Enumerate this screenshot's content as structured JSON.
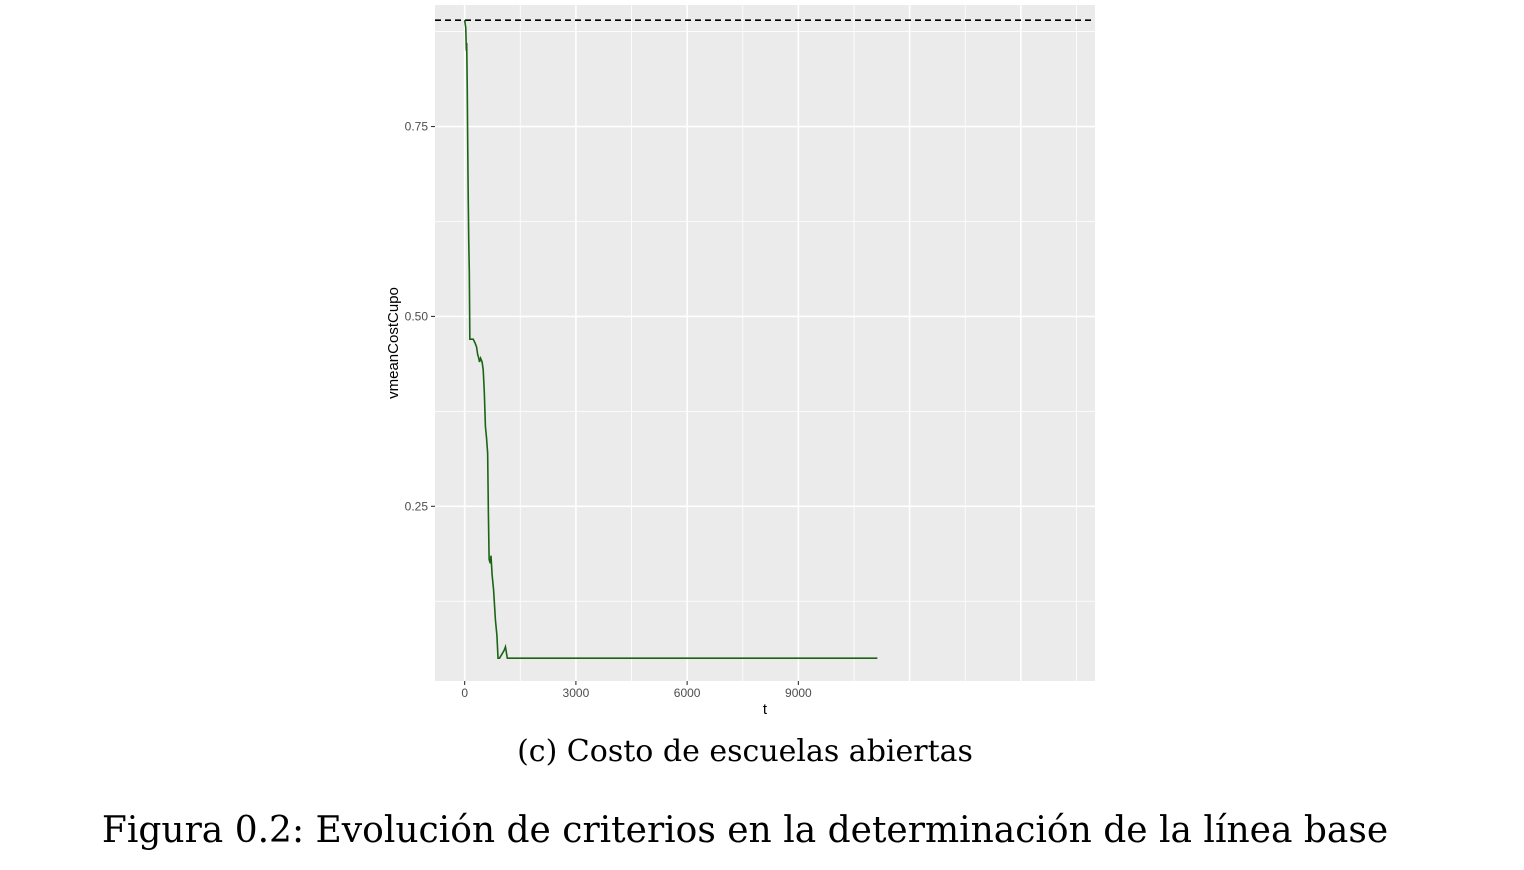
{
  "chart_data": {
    "type": "line",
    "xlabel": "t",
    "ylabel": "vmeanCostCupo",
    "xlim": [
      -800,
      17000
    ],
    "ylim": [
      0.02,
      0.91
    ],
    "x_ticks": [
      0,
      3000,
      6000,
      9000
    ],
    "x_tick_labels": [
      "0",
      "3000",
      "6000",
      "9000"
    ],
    "y_ticks": [
      0.25,
      0.5,
      0.75
    ],
    "y_tick_labels": [
      "0.25",
      "0.50",
      "0.75"
    ],
    "grid": true,
    "reference_line": {
      "y": 0.89,
      "style": "dashed",
      "color": "#000000"
    },
    "series": [
      {
        "color": "#1a6414",
        "x": [
          0,
          30,
          45,
          55,
          70,
          80,
          95,
          110,
          125,
          140,
          160,
          190,
          230,
          280,
          320,
          350,
          380,
          400,
          430,
          470,
          500,
          530,
          560,
          590,
          620,
          640,
          660,
          690,
          710,
          740,
          780,
          830,
          870,
          900,
          940,
          1000,
          1060,
          1100,
          1150,
          1300,
          2000,
          4000,
          6000,
          8000,
          10000,
          11130
        ],
        "y": [
          0.89,
          0.88,
          0.85,
          0.86,
          0.8,
          0.74,
          0.66,
          0.6,
          0.56,
          0.47,
          0.47,
          0.47,
          0.47,
          0.465,
          0.46,
          0.45,
          0.445,
          0.44,
          0.445,
          0.44,
          0.43,
          0.4,
          0.355,
          0.34,
          0.32,
          0.24,
          0.18,
          0.175,
          0.185,
          0.16,
          0.14,
          0.1,
          0.08,
          0.05,
          0.05,
          0.055,
          0.06,
          0.065,
          0.05,
          0.05,
          0.05,
          0.05,
          0.05,
          0.05,
          0.05,
          0.05
        ]
      }
    ]
  },
  "captions": {
    "subcaption": "(c) Costo de escuelas abiertas",
    "figure": "Figura 0.2: Evolución de criterios en la determinación de la línea base"
  }
}
